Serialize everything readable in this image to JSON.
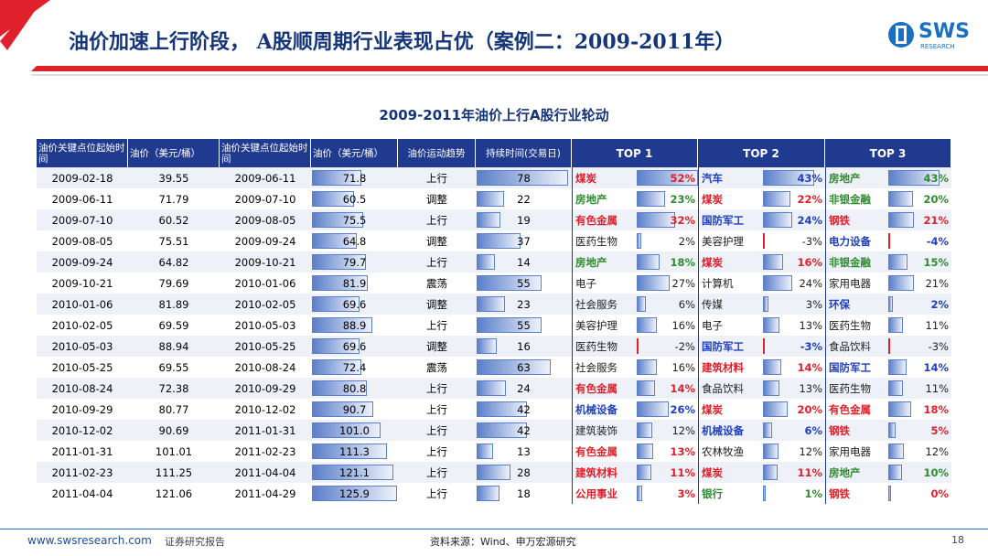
{
  "header": {
    "title": "油价加速上行阶段， A股顺周期行业表现占优（案例二：2009-2011年）",
    "logo": "SWS",
    "logo_sub": "RESEARCH"
  },
  "table": {
    "title": "2009-2011年油价上行A股行业轮动",
    "headers": [
      "油价关键点位起始时间",
      "油价（美元/桶）",
      "油价关键点位起始时间",
      "油价（美元/桶）",
      "油价运动趋势",
      "持续时间(交易日)",
      "TOP 1",
      "TOP 2",
      "TOP 3"
    ],
    "rows": [
      [
        "2009-02-18",
        "39.55",
        "2009-06-11",
        "71.8",
        "上行",
        "78",
        "煤炭",
        "52%",
        "汽车",
        "43%",
        "房地产",
        "43%"
      ],
      [
        "2009-06-11",
        "71.79",
        "2009-07-10",
        "60.5",
        "调整",
        "22",
        "房地产",
        "23%",
        "煤炭",
        "22%",
        "非银金融",
        "20%"
      ],
      [
        "2009-07-10",
        "60.52",
        "2009-08-05",
        "75.5",
        "上行",
        "19",
        "有色金属",
        "32%",
        "国防军工",
        "24%",
        "钢铁",
        "21%"
      ],
      [
        "2009-08-05",
        "75.51",
        "2009-09-24",
        "64.8",
        "调整",
        "37",
        "医药生物",
        "2%",
        "美容护理",
        "-3%",
        "电力设备",
        "-4%"
      ],
      [
        "2009-09-24",
        "64.82",
        "2009-10-21",
        "79.7",
        "上行",
        "14",
        "房地产",
        "18%",
        "煤炭",
        "16%",
        "非银金融",
        "15%"
      ],
      [
        "2009-10-21",
        "79.69",
        "2010-01-06",
        "81.9",
        "震荡",
        "55",
        "电子",
        "27%",
        "计算机",
        "24%",
        "家用电器",
        "21%"
      ],
      [
        "2010-01-06",
        "81.89",
        "2010-02-05",
        "69.6",
        "调整",
        "23",
        "社会服务",
        "6%",
        "传媒",
        "3%",
        "环保",
        "2%"
      ],
      [
        "2010-02-05",
        "69.59",
        "2010-05-03",
        "88.9",
        "上行",
        "55",
        "美容护理",
        "16%",
        "电子",
        "13%",
        "医药生物",
        "11%"
      ],
      [
        "2010-05-03",
        "88.94",
        "2010-05-25",
        "69.6",
        "调整",
        "16",
        "医药生物",
        "-2%",
        "国防军工",
        "-3%",
        "食品饮料",
        "-3%"
      ],
      [
        "2010-05-25",
        "69.55",
        "2010-08-24",
        "72.4",
        "震荡",
        "63",
        "社会服务",
        "16%",
        "建筑材料",
        "14%",
        "国防军工",
        "14%"
      ],
      [
        "2010-08-24",
        "72.38",
        "2010-09-29",
        "80.8",
        "上行",
        "24",
        "有色金属",
        "14%",
        "食品饮料",
        "13%",
        "医药生物",
        "11%"
      ],
      [
        "2010-09-29",
        "80.77",
        "2010-12-02",
        "90.7",
        "上行",
        "42",
        "机械设备",
        "26%",
        "煤炭",
        "20%",
        "有色金属",
        "18%"
      ],
      [
        "2010-12-02",
        "90.69",
        "2011-01-31",
        "101.0",
        "上行",
        "42",
        "建筑装饰",
        "12%",
        "机械设备",
        "6%",
        "钢铁",
        "5%"
      ],
      [
        "2011-01-31",
        "101.01",
        "2011-02-23",
        "111.3",
        "上行",
        "13",
        "有色金属",
        "13%",
        "农林牧渔",
        "12%",
        "家用电器",
        "12%"
      ],
      [
        "2011-02-23",
        "111.25",
        "2011-04-04",
        "121.1",
        "上行",
        "28",
        "建筑材料",
        "11%",
        "煤炭",
        "11%",
        "房地产",
        "10%"
      ],
      [
        "2011-04-04",
        "121.06",
        "2011-04-29",
        "125.9",
        "上行",
        "18",
        "公用事业",
        "3%",
        "银行",
        "1%",
        "钢铁",
        "0%"
      ]
    ],
    "top_colors": [
      [
        "#e0202a",
        "#1f3fbf",
        "#2e8b2e"
      ],
      [
        "#2e8b2e",
        "#e0202a",
        "#2e8b2e"
      ],
      [
        "#e0202a",
        "#1f3fbf",
        "#e0202a"
      ],
      [
        "#222222",
        "#222222",
        "#1f3fbf"
      ],
      [
        "#2e8b2e",
        "#e0202a",
        "#2e8b2e"
      ],
      [
        "#222222",
        "#222222",
        "#222222"
      ],
      [
        "#222222",
        "#222222",
        "#1f3fbf"
      ],
      [
        "#222222",
        "#222222",
        "#222222"
      ],
      [
        "#222222",
        "#1f3fbf",
        "#222222"
      ],
      [
        "#222222",
        "#e0202a",
        "#1f3fbf"
      ],
      [
        "#e0202a",
        "#222222",
        "#222222"
      ],
      [
        "#1f3fbf",
        "#e0202a",
        "#e0202a"
      ],
      [
        "#222222",
        "#1f3fbf",
        "#e0202a"
      ],
      [
        "#e0202a",
        "#222222",
        "#222222"
      ],
      [
        "#e0202a",
        "#e0202a",
        "#2e8b2e"
      ],
      [
        "#e0202a",
        "#2e8b2e",
        "#e0202a"
      ]
    ]
  },
  "footer": {
    "url": "www.swsresearch.com",
    "label": "证券研究报告",
    "source": "资料来源：Wind、申万宏源研究",
    "page": "18"
  }
}
